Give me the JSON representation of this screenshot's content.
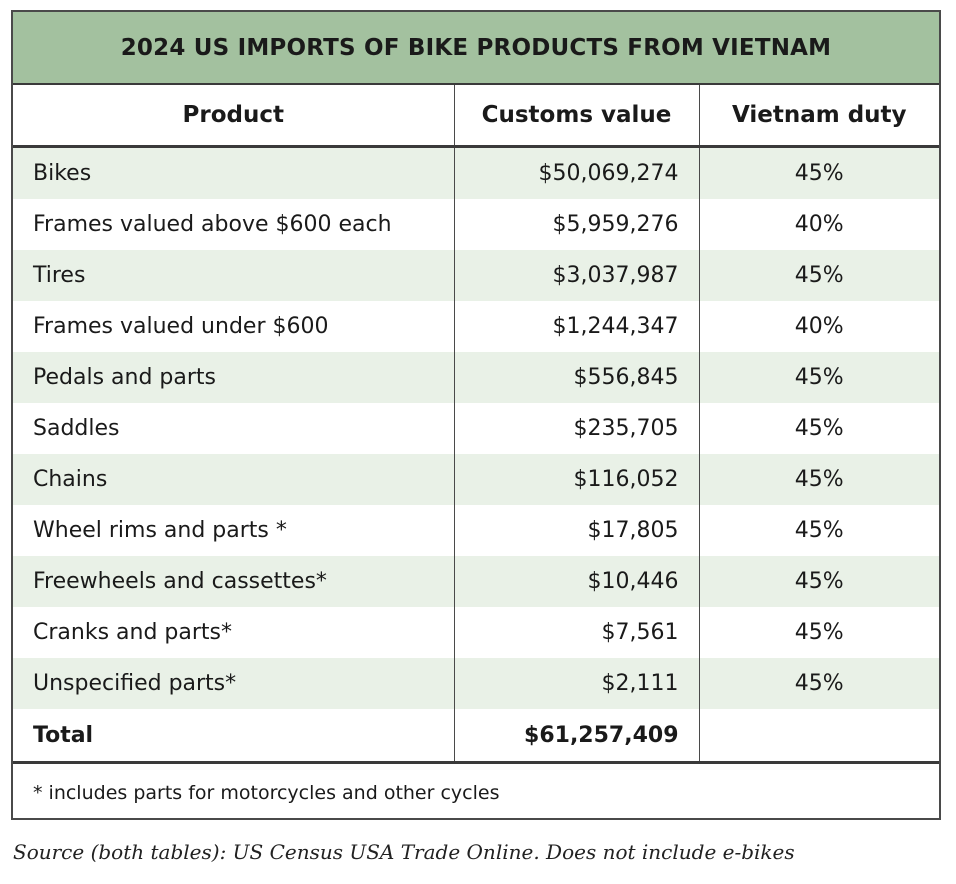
{
  "title": "2024 US IMPORTS OF BIKE PRODUCTS FROM VIETNAM",
  "columns": [
    "Product",
    "Customs value",
    "Vietnam duty"
  ],
  "rows": [
    {
      "product": "Bikes",
      "value": "$50,069,274",
      "duty": "45%"
    },
    {
      "product": "Frames valued above $600 each",
      "value": "$5,959,276",
      "duty": "40%"
    },
    {
      "product": "Tires",
      "value": "$3,037,987",
      "duty": "45%"
    },
    {
      "product": "Frames valued under $600",
      "value": "$1,244,347",
      "duty": "40%"
    },
    {
      "product": "Pedals and parts",
      "value": "$556,845",
      "duty": "45%"
    },
    {
      "product": "Saddles",
      "value": "$235,705",
      "duty": "45%"
    },
    {
      "product": "Chains",
      "value": "$116,052",
      "duty": "45%"
    },
    {
      "product": "Wheel rims and parts *",
      "value": "$17,805",
      "duty": "45%"
    },
    {
      "product": "Freewheels and cassettes*",
      "value": "$10,446",
      "duty": "45%"
    },
    {
      "product": "Cranks and parts*",
      "value": "$7,561",
      "duty": "45%"
    },
    {
      "product": "Unspecified parts*",
      "value": "$2,111",
      "duty": "45%"
    }
  ],
  "total": {
    "label": "Total",
    "value": "$61,257,409",
    "duty": ""
  },
  "footnote": "* includes parts for motorcycles and other cycles",
  "source": "Source (both tables): US Census USA Trade Online. Does not include e-bikes",
  "colors": {
    "header_bg": "#a3c19f",
    "stripe_bg": "#e9f1e7",
    "border": "#3a3a3a"
  }
}
